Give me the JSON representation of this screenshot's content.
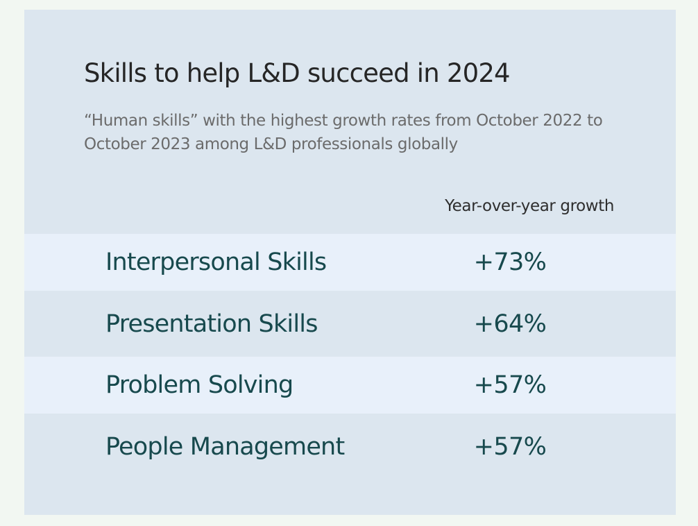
{
  "chart_data": {
    "type": "table",
    "title": "Skills to help L&D succeed in 2024",
    "subtitle": "“Human skills” with the highest growth rates from October 2022 to October 2023 among L&D professionals globally",
    "column_header": "Year-over-year growth",
    "rows": [
      {
        "skill": "Interpersonal Skills",
        "growth": "+73%",
        "value": 73
      },
      {
        "skill": "Presentation Skills",
        "growth": "+64%",
        "value": 64
      },
      {
        "skill": "Problem Solving",
        "growth": "+57%",
        "value": 57
      },
      {
        "skill": "People Management",
        "growth": "+57%",
        "value": 57
      }
    ]
  },
  "colors": {
    "page_background": "#f2f7f2",
    "card_background": "#dce6ef",
    "row_highlight": "#e8f0fa",
    "text_dark": "#262626",
    "text_muted": "#6b6b6b",
    "text_teal": "#17494d"
  }
}
